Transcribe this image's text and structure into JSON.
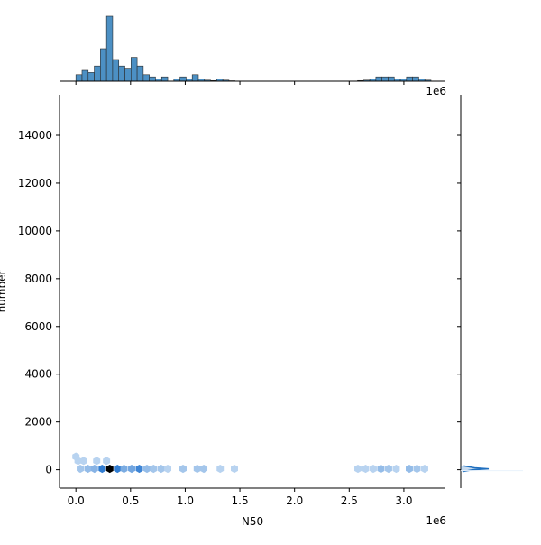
{
  "chart_data": {
    "type": "joint-hexbin",
    "xlabel": "N50",
    "ylabel": "number",
    "x_offset_label": "1e6",
    "top_offset_label": "1e6",
    "xlim": [
      -150000,
      3380000
    ],
    "ylim": [
      -770,
      15700
    ],
    "x_ticks": [
      0,
      0.5,
      1.0,
      1.5,
      2.0,
      2.5,
      3.0
    ],
    "x_tick_labels": [
      "0.0",
      "0.5",
      "1.0",
      "1.5",
      "2.0",
      "2.5",
      "3.0"
    ],
    "y_ticks": [
      0,
      2000,
      4000,
      6000,
      8000,
      10000,
      12000,
      14000
    ],
    "y_tick_labels": [
      "0",
      "2000",
      "4000",
      "6000",
      "8000",
      "10000",
      "12000",
      "14000"
    ],
    "hexbins": [
      {
        "x": 0,
        "y": 550,
        "count": 1
      },
      {
        "x": 20000,
        "y": 370,
        "count": 1
      },
      {
        "x": 70000,
        "y": 370,
        "count": 1
      },
      {
        "x": 40000,
        "y": 40,
        "count": 2
      },
      {
        "x": 110000,
        "y": 40,
        "count": 3
      },
      {
        "x": 170000,
        "y": 40,
        "count": 4
      },
      {
        "x": 240000,
        "y": 40,
        "count": 14
      },
      {
        "x": 310000,
        "y": 40,
        "count": 40
      },
      {
        "x": 380000,
        "y": 40,
        "count": 14
      },
      {
        "x": 440000,
        "y": 40,
        "count": 5
      },
      {
        "x": 510000,
        "y": 40,
        "count": 6
      },
      {
        "x": 580000,
        "y": 40,
        "count": 12
      },
      {
        "x": 650000,
        "y": 40,
        "count": 3
      },
      {
        "x": 710000,
        "y": 40,
        "count": 2
      },
      {
        "x": 780000,
        "y": 40,
        "count": 2
      },
      {
        "x": 840000,
        "y": 40,
        "count": 1
      },
      {
        "x": 980000,
        "y": 40,
        "count": 2
      },
      {
        "x": 1110000,
        "y": 40,
        "count": 2
      },
      {
        "x": 1170000,
        "y": 40,
        "count": 2
      },
      {
        "x": 1320000,
        "y": 40,
        "count": 1
      },
      {
        "x": 1450000,
        "y": 40,
        "count": 1
      },
      {
        "x": 2580000,
        "y": 40,
        "count": 1
      },
      {
        "x": 2650000,
        "y": 40,
        "count": 1
      },
      {
        "x": 2720000,
        "y": 40,
        "count": 1
      },
      {
        "x": 2790000,
        "y": 40,
        "count": 3
      },
      {
        "x": 2860000,
        "y": 40,
        "count": 2
      },
      {
        "x": 2930000,
        "y": 40,
        "count": 1
      },
      {
        "x": 3050000,
        "y": 40,
        "count": 3
      },
      {
        "x": 3120000,
        "y": 40,
        "count": 2
      },
      {
        "x": 3190000,
        "y": 40,
        "count": 1
      },
      {
        "x": 280000,
        "y": 370,
        "count": 1
      },
      {
        "x": 190000,
        "y": 370,
        "count": 1
      }
    ],
    "top_histogram": {
      "bin_width": 56000,
      "bins": [
        {
          "x0": 0,
          "count": 3
        },
        {
          "x0": 56000,
          "count": 5
        },
        {
          "x0": 112000,
          "count": 4
        },
        {
          "x0": 168000,
          "count": 7
        },
        {
          "x0": 224000,
          "count": 15
        },
        {
          "x0": 280000,
          "count": 30
        },
        {
          "x0": 336000,
          "count": 10
        },
        {
          "x0": 392000,
          "count": 7
        },
        {
          "x0": 448000,
          "count": 6
        },
        {
          "x0": 504000,
          "count": 11
        },
        {
          "x0": 560000,
          "count": 7
        },
        {
          "x0": 616000,
          "count": 3
        },
        {
          "x0": 672000,
          "count": 2
        },
        {
          "x0": 728000,
          "count": 1
        },
        {
          "x0": 784000,
          "count": 2
        },
        {
          "x0": 840000,
          "count": 0
        },
        {
          "x0": 896000,
          "count": 1
        },
        {
          "x0": 952000,
          "count": 2
        },
        {
          "x0": 1008000,
          "count": 1
        },
        {
          "x0": 1064000,
          "count": 3
        },
        {
          "x0": 1120000,
          "count": 1
        },
        {
          "x0": 1176000,
          "count": 0.5
        },
        {
          "x0": 1232000,
          "count": 0.3
        },
        {
          "x0": 1288000,
          "count": 1
        },
        {
          "x0": 1344000,
          "count": 0.5
        },
        {
          "x0": 1400000,
          "count": 0.2
        },
        {
          "x0": 2576000,
          "count": 0.3
        },
        {
          "x0": 2632000,
          "count": 0.5
        },
        {
          "x0": 2688000,
          "count": 1
        },
        {
          "x0": 2744000,
          "count": 2
        },
        {
          "x0": 2800000,
          "count": 2
        },
        {
          "x0": 2856000,
          "count": 2
        },
        {
          "x0": 2912000,
          "count": 1
        },
        {
          "x0": 2968000,
          "count": 1
        },
        {
          "x0": 3024000,
          "count": 2
        },
        {
          "x0": 3080000,
          "count": 2
        },
        {
          "x0": 3136000,
          "count": 1
        },
        {
          "x0": 3192000,
          "count": 0.5
        }
      ]
    },
    "right_density": {
      "peak_y": 0,
      "points": [
        {
          "y": -80,
          "d": 0.02
        },
        {
          "y": 0,
          "d": 0.12
        },
        {
          "y": 40,
          "d": 0.28
        },
        {
          "y": 80,
          "d": 0.14
        },
        {
          "y": 160,
          "d": 0.03
        }
      ]
    },
    "colors": {
      "hex_max": "#000000",
      "hex_mid": "#2e7bd1",
      "hex_low": "#eaf2fb",
      "hist_fill": "#4c90c4",
      "kde_line": "#1f6fbf",
      "axis": "#000000"
    }
  }
}
